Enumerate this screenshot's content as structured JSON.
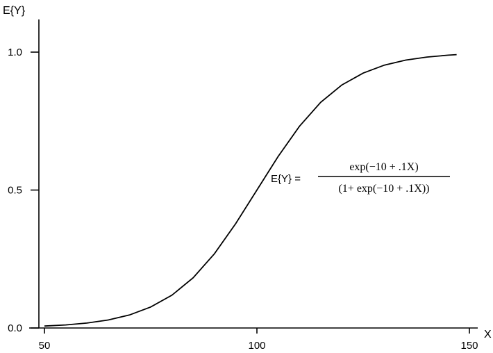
{
  "chart_data": {
    "type": "line",
    "title": "",
    "xlabel": "X",
    "ylabel": "E{Y}",
    "xlim": [
      50,
      150
    ],
    "ylim": [
      0,
      1
    ],
    "x_ticks": [
      {
        "value": 50,
        "label": "50"
      },
      {
        "value": 100,
        "label": "100"
      },
      {
        "value": 150,
        "label": "150"
      }
    ],
    "y_ticks": [
      {
        "value": 0,
        "label": "0.0"
      },
      {
        "value": 0.5,
        "label": "0.5"
      },
      {
        "value": 1,
        "label": "1.0"
      }
    ],
    "grid": false,
    "legend": "none",
    "series": [
      {
        "function": "exp(-10 + .1X) / (1 + exp(-10 + .1X))",
        "x": [
          50,
          55,
          60,
          65,
          70,
          75,
          80,
          85,
          90,
          95,
          100,
          105,
          110,
          115,
          120,
          125,
          130,
          135,
          140,
          145,
          147
        ],
        "y": [
          0.007,
          0.011,
          0.018,
          0.029,
          0.047,
          0.076,
          0.119,
          0.182,
          0.269,
          0.378,
          0.5,
          0.622,
          0.731,
          0.818,
          0.881,
          0.924,
          0.953,
          0.971,
          0.982,
          0.989,
          0.991
        ]
      }
    ],
    "annotation": {
      "lhs": "E{Y} =",
      "numerator": "exp(−10 + .1X)",
      "denominator": "(1+ exp(−10 + .1X))"
    }
  }
}
